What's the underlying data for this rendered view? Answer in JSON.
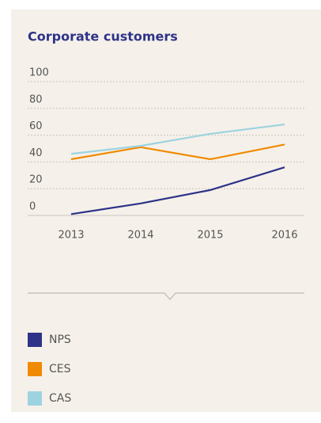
{
  "chart_data": {
    "type": "line",
    "title": "Corporate customers",
    "categories": [
      "2013",
      "2014",
      "2015",
      "2016"
    ],
    "series": [
      {
        "name": "NPS",
        "color": "#2e3388",
        "values": [
          1,
          9,
          19,
          36
        ]
      },
      {
        "name": "CES",
        "color": "#f08a00",
        "values": [
          42,
          51,
          42,
          53
        ]
      },
      {
        "name": "CAS",
        "color": "#9dd3e0",
        "values": [
          46,
          52,
          61,
          68
        ]
      }
    ],
    "ylim": [
      0,
      100
    ],
    "yticks": [
      0,
      20,
      40,
      60,
      80,
      100
    ],
    "grid": true
  }
}
